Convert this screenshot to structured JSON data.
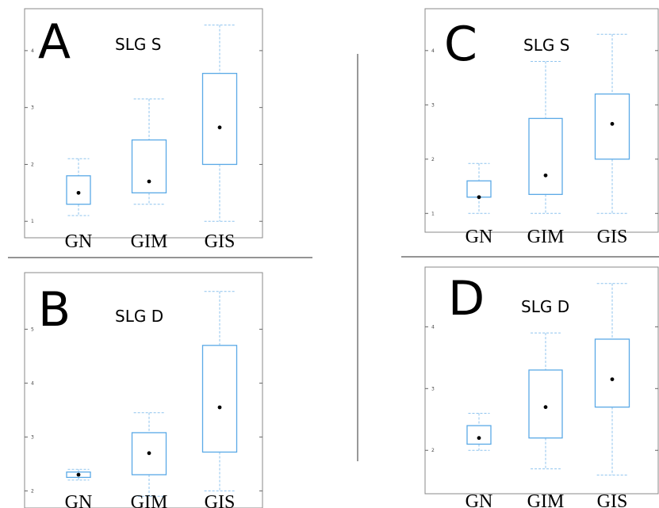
{
  "chart_data": [
    {
      "panel": "A",
      "title": "SLG S",
      "type": "box",
      "categories": [
        "GN",
        "GIM",
        "GIS"
      ],
      "yticks": [
        1,
        2,
        3,
        4
      ],
      "ylim": [
        0.85,
        4.5
      ],
      "boxes": [
        {
          "category": "GN",
          "min": 1.1,
          "q1": 1.3,
          "median": 1.5,
          "q3": 1.8,
          "max": 2.1
        },
        {
          "category": "GIM",
          "min": 1.3,
          "q1": 1.5,
          "median": 1.7,
          "q3": 2.43,
          "max": 3.15
        },
        {
          "category": "GIS",
          "min": 1.0,
          "q1": 2.0,
          "median": 2.65,
          "q3": 3.6,
          "max": 4.45
        }
      ]
    },
    {
      "panel": "B",
      "title": "SLG D",
      "type": "box",
      "categories": [
        "GN",
        "GIM",
        "GIS"
      ],
      "yticks": [
        2,
        3,
        4,
        5
      ],
      "ylim": [
        1.8,
        5.8
      ],
      "boxes": [
        {
          "category": "GN",
          "min": 2.2,
          "q1": 2.25,
          "median": 2.3,
          "q3": 2.35,
          "max": 2.4
        },
        {
          "category": "GIM",
          "min": 1.9,
          "q1": 2.3,
          "median": 2.7,
          "q3": 3.08,
          "max": 3.45
        },
        {
          "category": "GIS",
          "min": 2.0,
          "q1": 2.72,
          "median": 3.55,
          "q3": 4.7,
          "max": 5.7
        }
      ]
    },
    {
      "panel": "C",
      "title": "SLG S",
      "type": "box",
      "categories": [
        "GN",
        "GIM",
        "GIS"
      ],
      "yticks": [
        1,
        2,
        3,
        4
      ],
      "ylim": [
        0.8,
        4.45
      ],
      "boxes": [
        {
          "category": "GN",
          "min": 1.0,
          "q1": 1.3,
          "median": 1.3,
          "q3": 1.6,
          "max": 1.92
        },
        {
          "category": "GIM",
          "min": 1.0,
          "q1": 1.35,
          "median": 1.7,
          "q3": 2.75,
          "max": 3.8
        },
        {
          "category": "GIS",
          "min": 1.0,
          "q1": 2.0,
          "median": 2.65,
          "q3": 3.2,
          "max": 4.3
        }
      ]
    },
    {
      "panel": "D",
      "title": "SLG D",
      "type": "box",
      "categories": [
        "GN",
        "GIM",
        "GIS"
      ],
      "yticks": [
        2,
        3,
        4
      ],
      "ylim": [
        1.4,
        4.8
      ],
      "boxes": [
        {
          "category": "GN",
          "min": 2.0,
          "q1": 2.1,
          "median": 2.2,
          "q3": 2.4,
          "max": 2.6
        },
        {
          "category": "GIM",
          "min": 1.7,
          "q1": 2.2,
          "median": 2.7,
          "q3": 3.3,
          "max": 3.9
        },
        {
          "category": "GIS",
          "min": 1.6,
          "q1": 2.7,
          "median": 3.15,
          "q3": 3.8,
          "max": 4.7
        }
      ]
    }
  ]
}
